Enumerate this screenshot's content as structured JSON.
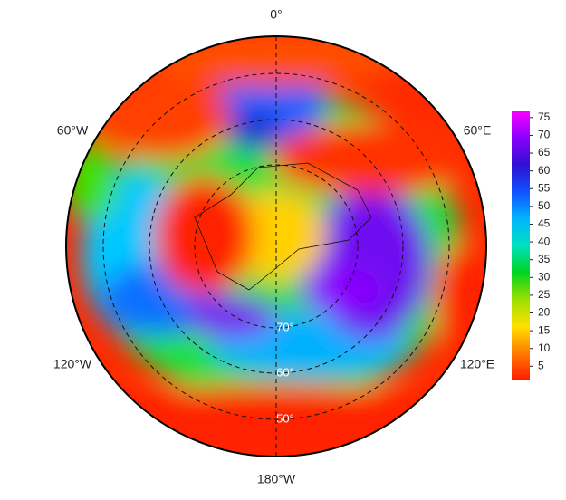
{
  "map": {
    "longitude_labels": [
      "0°",
      "60°E",
      "120°E",
      "180°W",
      "120°W",
      "60°W"
    ],
    "latitude_labels": [
      "70°",
      "60°",
      "50°"
    ]
  },
  "colorbar": {
    "ylim": [
      1,
      77
    ],
    "yticks": [
      5,
      10,
      15,
      20,
      25,
      30,
      35,
      40,
      45,
      50,
      55,
      60,
      65,
      70,
      75
    ],
    "colors": [
      "#ff1a00",
      "#ff7a00",
      "#ffe000",
      "#9be000",
      "#00d420",
      "#00e0c0",
      "#00b4ff",
      "#1050ff",
      "#3010d0",
      "#8a00ff",
      "#ff00ff"
    ]
  }
}
